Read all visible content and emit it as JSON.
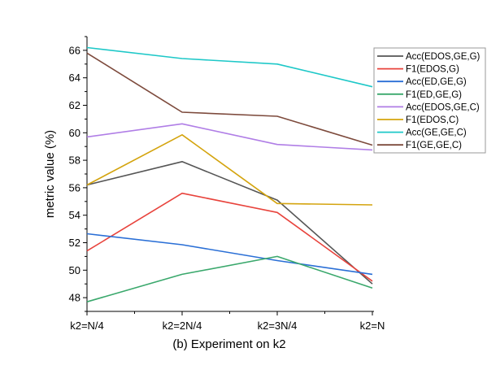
{
  "chart_data": {
    "type": "line",
    "title": "",
    "xlabel": "(b) Experiment on k2",
    "ylabel": "metric value (%)",
    "categories": [
      "k2=N/4",
      "k2=2N/4",
      "k2=3N/4",
      "k2=N"
    ],
    "ylim": [
      47,
      67
    ],
    "yticks": [
      48,
      50,
      52,
      54,
      56,
      58,
      60,
      62,
      64,
      66
    ],
    "grid": false,
    "legend_position": "top-right",
    "series": [
      {
        "name": "Acc(EDOS,GE,G)",
        "color": "#555555",
        "values": [
          56.2,
          57.9,
          55.1,
          49.0
        ]
      },
      {
        "name": "F1(EDOS,G)",
        "color": "#e8433c",
        "values": [
          51.4,
          55.6,
          54.2,
          49.2
        ]
      },
      {
        "name": "Acc(ED,GE,G)",
        "color": "#2a6fd6",
        "values": [
          52.65,
          51.85,
          50.7,
          49.7
        ]
      },
      {
        "name": "F1(ED,GE,G)",
        "color": "#3aa86c",
        "values": [
          47.7,
          49.7,
          51.0,
          48.7
        ]
      },
      {
        "name": "Acc(EDOS,GE,C)",
        "color": "#b07ee6",
        "values": [
          59.7,
          60.65,
          59.15,
          58.75
        ]
      },
      {
        "name": "F1(EDOS,C)",
        "color": "#d4a40e",
        "values": [
          56.2,
          59.85,
          54.85,
          54.75
        ]
      },
      {
        "name": "Acc(GE,GE,C)",
        "color": "#1ec8c8",
        "values": [
          66.2,
          65.4,
          65.0,
          63.35
        ]
      },
      {
        "name": "F1(GE,GE,C)",
        "color": "#7d4a3c",
        "values": [
          65.8,
          61.5,
          61.2,
          59.1
        ]
      }
    ]
  }
}
